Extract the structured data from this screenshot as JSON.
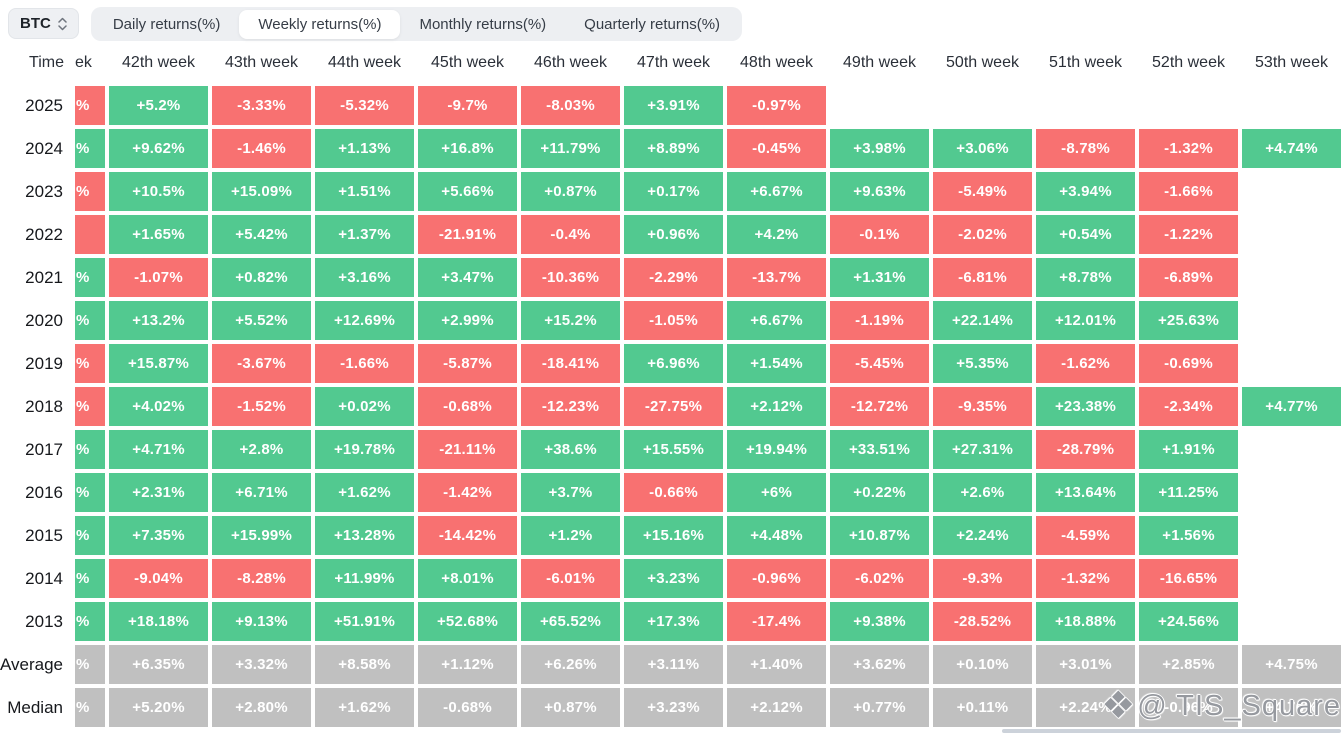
{
  "controls": {
    "symbol_selector": {
      "value": "BTC"
    },
    "tabs": [
      {
        "label": "Daily returns(%)",
        "active": false
      },
      {
        "label": "Weekly returns(%)",
        "active": true
      },
      {
        "label": "Monthly returns(%)",
        "active": false
      },
      {
        "label": "Quarterly returns(%)",
        "active": false
      }
    ]
  },
  "table": {
    "time_header": "Time",
    "clipped_week_header_fragment": "ek",
    "week_headers": [
      "42th week",
      "43th week",
      "44th week",
      "45th week",
      "46th week",
      "47th week",
      "48th week",
      "49th week",
      "50th week",
      "51th week",
      "52th week",
      "53th week"
    ],
    "rows": [
      {
        "label": "2025",
        "clipped_cell": {
          "color": "r",
          "text": "%"
        },
        "cells": [
          [
            "+5.2%",
            "g"
          ],
          [
            "-3.33%",
            "r"
          ],
          [
            "-5.32%",
            "r"
          ],
          [
            "-9.7%",
            "r"
          ],
          [
            "-8.03%",
            "r"
          ],
          [
            "+3.91%",
            "g"
          ],
          [
            "-0.97%",
            "r"
          ],
          null,
          null,
          null,
          null,
          null
        ]
      },
      {
        "label": "2024",
        "clipped_cell": {
          "color": "g",
          "text": "%"
        },
        "cells": [
          [
            "+9.62%",
            "g"
          ],
          [
            "-1.46%",
            "r"
          ],
          [
            "+1.13%",
            "g"
          ],
          [
            "+16.8%",
            "g"
          ],
          [
            "+11.79%",
            "g"
          ],
          [
            "+8.89%",
            "g"
          ],
          [
            "-0.45%",
            "r"
          ],
          [
            "+3.98%",
            "g"
          ],
          [
            "+3.06%",
            "g"
          ],
          [
            "-8.78%",
            "r"
          ],
          [
            "-1.32%",
            "r"
          ],
          [
            "+4.74%",
            "g"
          ]
        ]
      },
      {
        "label": "2023",
        "clipped_cell": {
          "color": "r",
          "text": "%"
        },
        "cells": [
          [
            "+10.5%",
            "g"
          ],
          [
            "+15.09%",
            "g"
          ],
          [
            "+1.51%",
            "g"
          ],
          [
            "+5.66%",
            "g"
          ],
          [
            "+0.87%",
            "g"
          ],
          [
            "+0.17%",
            "g"
          ],
          [
            "+6.67%",
            "g"
          ],
          [
            "+9.63%",
            "g"
          ],
          [
            "-5.49%",
            "r"
          ],
          [
            "+3.94%",
            "g"
          ],
          [
            "-1.66%",
            "r"
          ],
          null
        ]
      },
      {
        "label": "2022",
        "clipped_cell": {
          "color": "r",
          "text": ""
        },
        "cells": [
          [
            "+1.65%",
            "g"
          ],
          [
            "+5.42%",
            "g"
          ],
          [
            "+1.37%",
            "g"
          ],
          [
            "-21.91%",
            "r"
          ],
          [
            "-0.4%",
            "r"
          ],
          [
            "+0.96%",
            "g"
          ],
          [
            "+4.2%",
            "g"
          ],
          [
            "-0.1%",
            "r"
          ],
          [
            "-2.02%",
            "r"
          ],
          [
            "+0.54%",
            "g"
          ],
          [
            "-1.22%",
            "r"
          ],
          null
        ]
      },
      {
        "label": "2021",
        "clipped_cell": {
          "color": "g",
          "text": "%"
        },
        "cells": [
          [
            "-1.07%",
            "r"
          ],
          [
            "+0.82%",
            "g"
          ],
          [
            "+3.16%",
            "g"
          ],
          [
            "+3.47%",
            "g"
          ],
          [
            "-10.36%",
            "r"
          ],
          [
            "-2.29%",
            "r"
          ],
          [
            "-13.7%",
            "r"
          ],
          [
            "+1.31%",
            "g"
          ],
          [
            "-6.81%",
            "r"
          ],
          [
            "+8.78%",
            "g"
          ],
          [
            "-6.89%",
            "r"
          ],
          null
        ]
      },
      {
        "label": "2020",
        "clipped_cell": {
          "color": "g",
          "text": "%"
        },
        "cells": [
          [
            "+13.2%",
            "g"
          ],
          [
            "+5.52%",
            "g"
          ],
          [
            "+12.69%",
            "g"
          ],
          [
            "+2.99%",
            "g"
          ],
          [
            "+15.2%",
            "g"
          ],
          [
            "-1.05%",
            "r"
          ],
          [
            "+6.67%",
            "g"
          ],
          [
            "-1.19%",
            "r"
          ],
          [
            "+22.14%",
            "g"
          ],
          [
            "+12.01%",
            "g"
          ],
          [
            "+25.63%",
            "g"
          ],
          null
        ]
      },
      {
        "label": "2019",
        "clipped_cell": {
          "color": "r",
          "text": "%"
        },
        "cells": [
          [
            "+15.87%",
            "g"
          ],
          [
            "-3.67%",
            "r"
          ],
          [
            "-1.66%",
            "r"
          ],
          [
            "-5.87%",
            "r"
          ],
          [
            "-18.41%",
            "r"
          ],
          [
            "+6.96%",
            "g"
          ],
          [
            "+1.54%",
            "g"
          ],
          [
            "-5.45%",
            "r"
          ],
          [
            "+5.35%",
            "g"
          ],
          [
            "-1.62%",
            "r"
          ],
          [
            "-0.69%",
            "r"
          ],
          null
        ]
      },
      {
        "label": "2018",
        "clipped_cell": {
          "color": "r",
          "text": "%"
        },
        "cells": [
          [
            "+4.02%",
            "g"
          ],
          [
            "-1.52%",
            "r"
          ],
          [
            "+0.02%",
            "g"
          ],
          [
            "-0.68%",
            "r"
          ],
          [
            "-12.23%",
            "r"
          ],
          [
            "-27.75%",
            "r"
          ],
          [
            "+2.12%",
            "g"
          ],
          [
            "-12.72%",
            "r"
          ],
          [
            "-9.35%",
            "r"
          ],
          [
            "+23.38%",
            "g"
          ],
          [
            "-2.34%",
            "r"
          ],
          [
            "+4.77%",
            "g"
          ]
        ]
      },
      {
        "label": "2017",
        "clipped_cell": {
          "color": "g",
          "text": "%"
        },
        "cells": [
          [
            "+4.71%",
            "g"
          ],
          [
            "+2.8%",
            "g"
          ],
          [
            "+19.78%",
            "g"
          ],
          [
            "-21.11%",
            "r"
          ],
          [
            "+38.6%",
            "g"
          ],
          [
            "+15.55%",
            "g"
          ],
          [
            "+19.94%",
            "g"
          ],
          [
            "+33.51%",
            "g"
          ],
          [
            "+27.31%",
            "g"
          ],
          [
            "-28.79%",
            "r"
          ],
          [
            "+1.91%",
            "g"
          ],
          null
        ]
      },
      {
        "label": "2016",
        "clipped_cell": {
          "color": "g",
          "text": "%"
        },
        "cells": [
          [
            "+2.31%",
            "g"
          ],
          [
            "+6.71%",
            "g"
          ],
          [
            "+1.62%",
            "g"
          ],
          [
            "-1.42%",
            "r"
          ],
          [
            "+3.7%",
            "g"
          ],
          [
            "-0.66%",
            "r"
          ],
          [
            "+6%",
            "g"
          ],
          [
            "+0.22%",
            "g"
          ],
          [
            "+2.6%",
            "g"
          ],
          [
            "+13.64%",
            "g"
          ],
          [
            "+11.25%",
            "g"
          ],
          null
        ]
      },
      {
        "label": "2015",
        "clipped_cell": {
          "color": "g",
          "text": "%"
        },
        "cells": [
          [
            "+7.35%",
            "g"
          ],
          [
            "+15.99%",
            "g"
          ],
          [
            "+13.28%",
            "g"
          ],
          [
            "-14.42%",
            "r"
          ],
          [
            "+1.2%",
            "g"
          ],
          [
            "+15.16%",
            "g"
          ],
          [
            "+4.48%",
            "g"
          ],
          [
            "+10.87%",
            "g"
          ],
          [
            "+2.24%",
            "g"
          ],
          [
            "-4.59%",
            "r"
          ],
          [
            "+1.56%",
            "g"
          ],
          null
        ]
      },
      {
        "label": "2014",
        "clipped_cell": {
          "color": "g",
          "text": "%"
        },
        "cells": [
          [
            "-9.04%",
            "r"
          ],
          [
            "-8.28%",
            "r"
          ],
          [
            "+11.99%",
            "g"
          ],
          [
            "+8.01%",
            "g"
          ],
          [
            "-6.01%",
            "r"
          ],
          [
            "+3.23%",
            "g"
          ],
          [
            "-0.96%",
            "r"
          ],
          [
            "-6.02%",
            "r"
          ],
          [
            "-9.3%",
            "r"
          ],
          [
            "-1.32%",
            "r"
          ],
          [
            "-16.65%",
            "r"
          ],
          null
        ]
      },
      {
        "label": "2013",
        "clipped_cell": {
          "color": "g",
          "text": "%"
        },
        "cells": [
          [
            "+18.18%",
            "g"
          ],
          [
            "+9.13%",
            "g"
          ],
          [
            "+51.91%",
            "g"
          ],
          [
            "+52.68%",
            "g"
          ],
          [
            "+65.52%",
            "g"
          ],
          [
            "+17.3%",
            "g"
          ],
          [
            "-17.4%",
            "r"
          ],
          [
            "+9.38%",
            "g"
          ],
          [
            "-28.52%",
            "r"
          ],
          [
            "+18.88%",
            "g"
          ],
          [
            "+24.56%",
            "g"
          ],
          null
        ]
      },
      {
        "label": "Average",
        "clipped_cell": {
          "color": "y",
          "text": "%"
        },
        "cells": [
          [
            "+6.35%",
            "y"
          ],
          [
            "+3.32%",
            "y"
          ],
          [
            "+8.58%",
            "y"
          ],
          [
            "+1.12%",
            "y"
          ],
          [
            "+6.26%",
            "y"
          ],
          [
            "+3.11%",
            "y"
          ],
          [
            "+1.40%",
            "y"
          ],
          [
            "+3.62%",
            "y"
          ],
          [
            "+0.10%",
            "y"
          ],
          [
            "+3.01%",
            "y"
          ],
          [
            "+2.85%",
            "y"
          ],
          [
            "+4.75%",
            "y"
          ]
        ]
      },
      {
        "label": "Median",
        "clipped_cell": {
          "color": "y",
          "text": "%"
        },
        "cells": [
          [
            "+5.20%",
            "y"
          ],
          [
            "+2.80%",
            "y"
          ],
          [
            "+1.62%",
            "y"
          ],
          [
            "-0.68%",
            "y"
          ],
          [
            "+0.87%",
            "y"
          ],
          [
            "+3.23%",
            "y"
          ],
          [
            "+2.12%",
            "y"
          ],
          [
            "+0.77%",
            "y"
          ],
          [
            "+0.11%",
            "y"
          ],
          [
            "+2.24%",
            "y"
          ],
          [
            "-0.96%",
            "y"
          ],
          [
            "+4.76%",
            "y"
          ]
        ]
      }
    ]
  },
  "watermark": {
    "icon": "diamond-icon",
    "icon_glyph": "❖",
    "text": "@ TIS_Square"
  },
  "colors": {
    "positive": "#52C990",
    "negative": "#F87171",
    "neutral": "#C0C0C0",
    "tabbar_bg": "#EDEFF2",
    "active_tab_bg": "#FFFFFF"
  }
}
